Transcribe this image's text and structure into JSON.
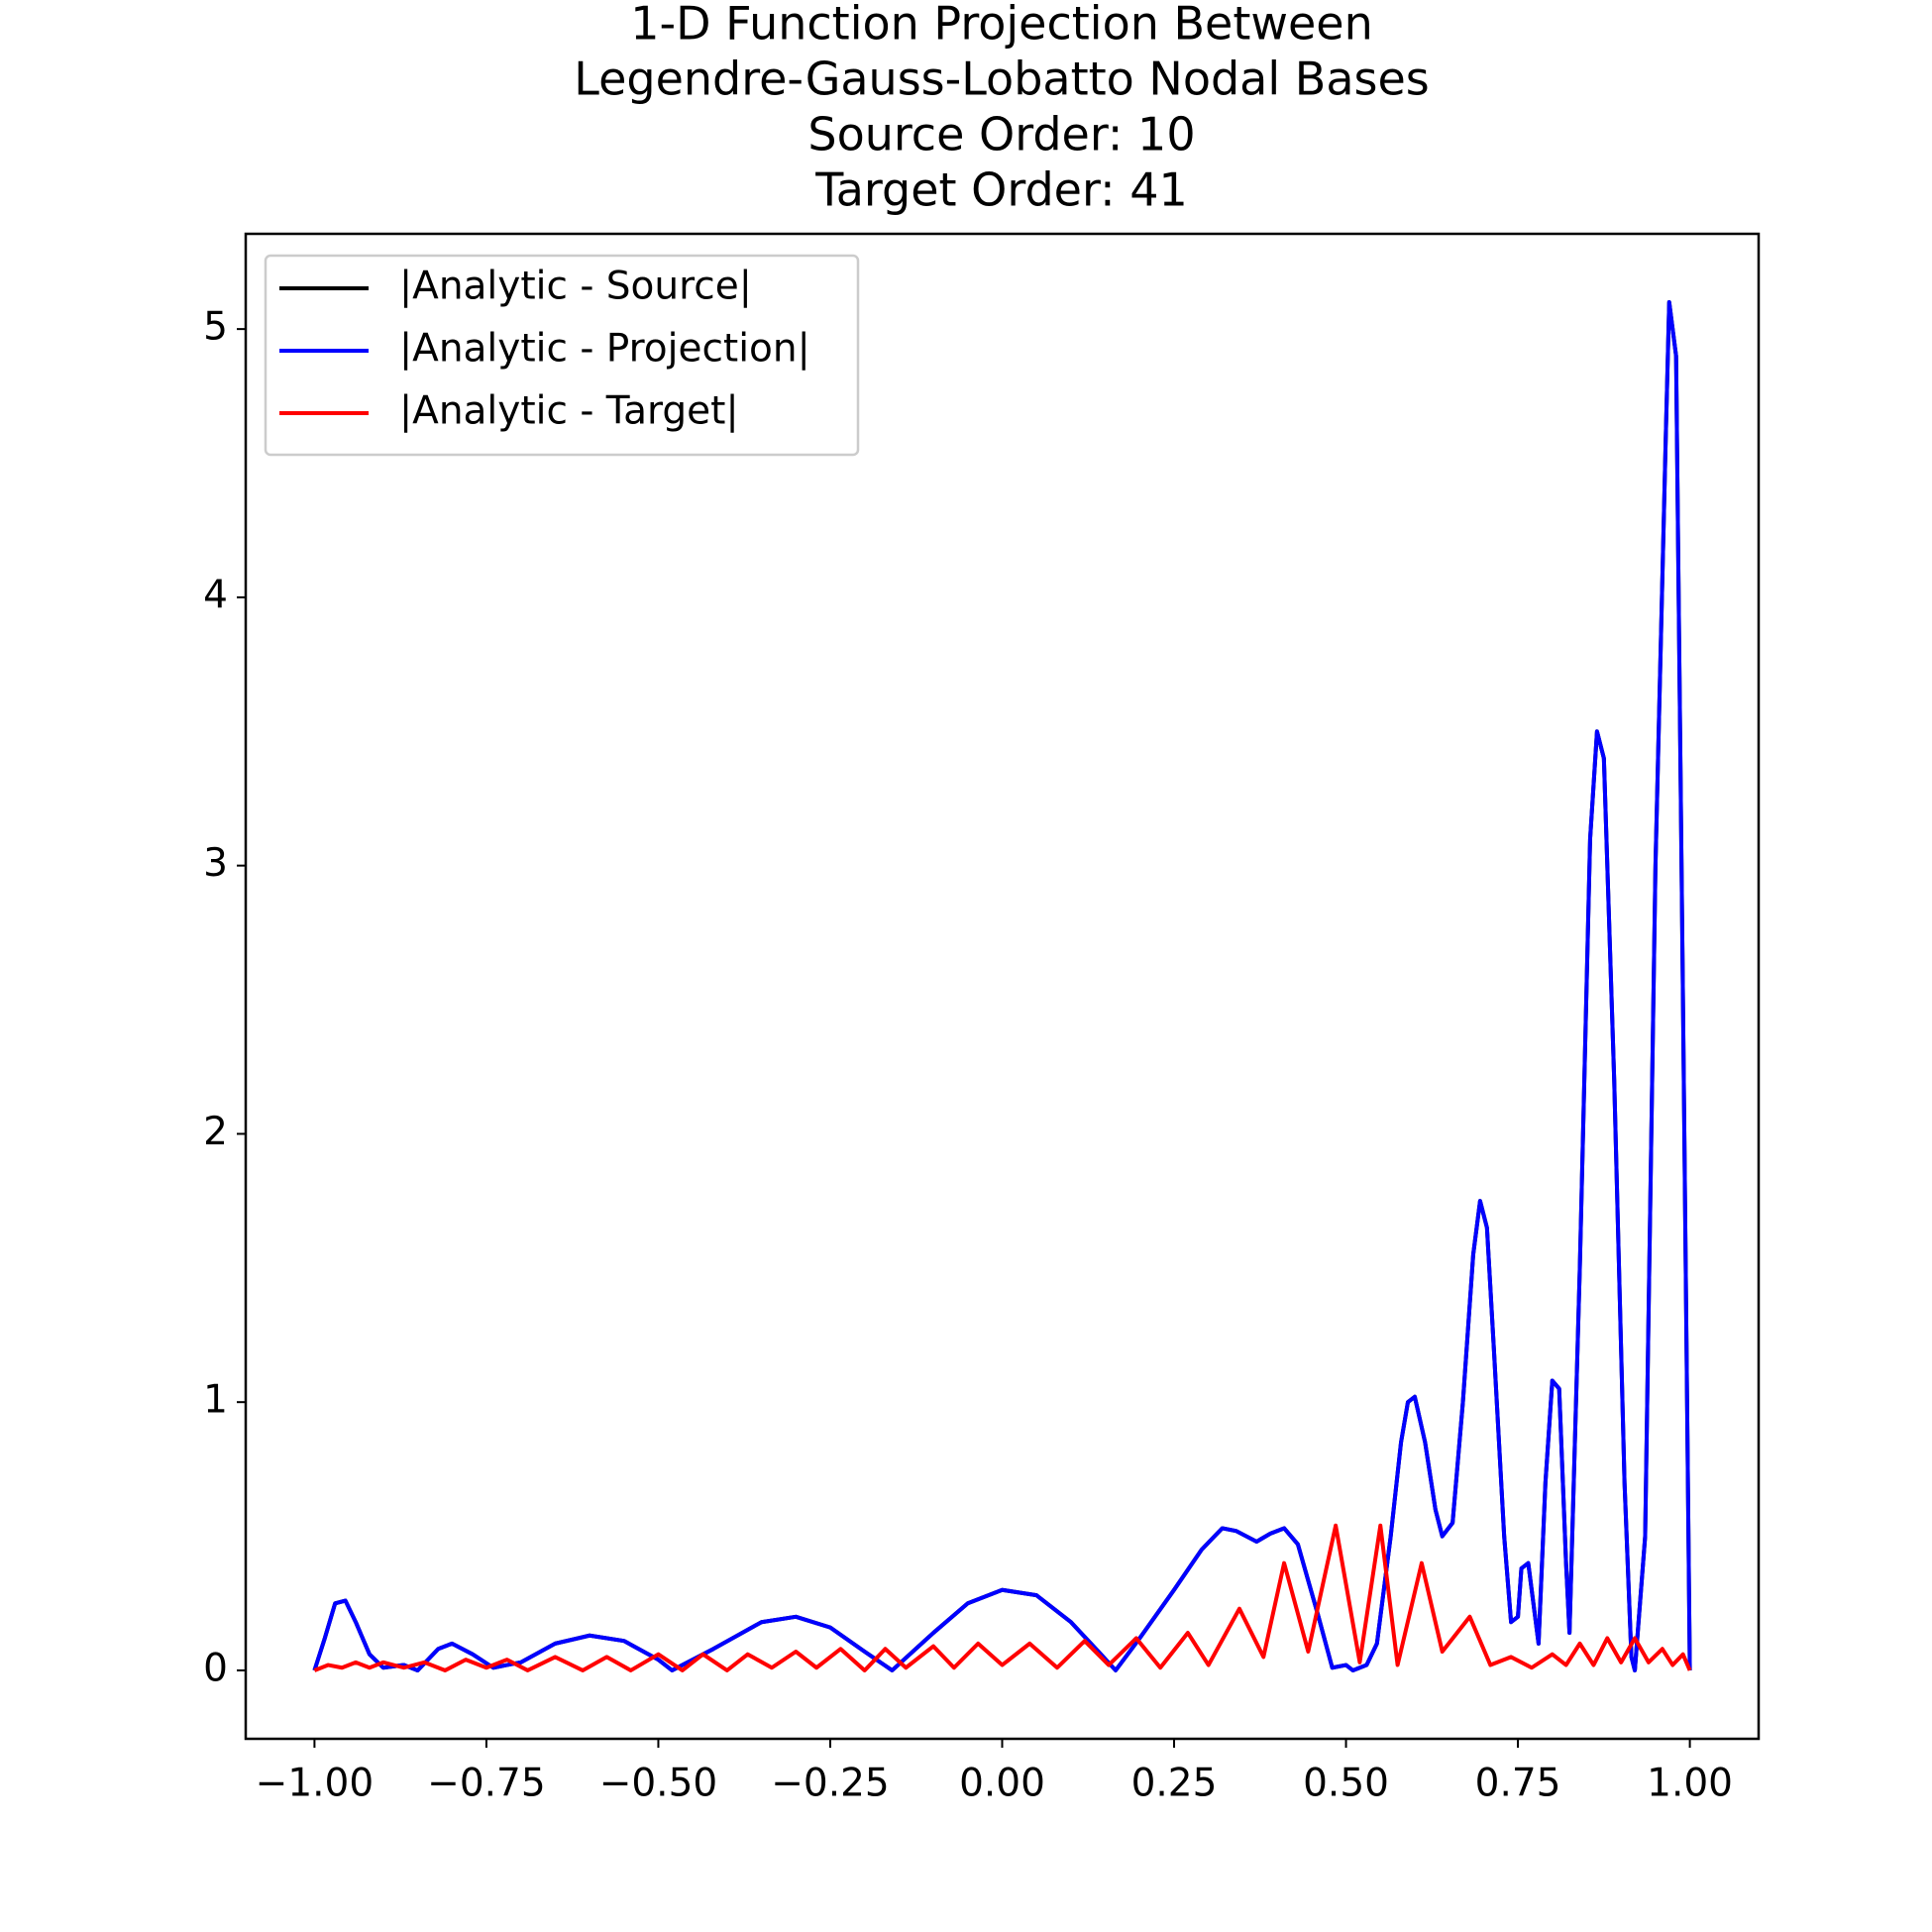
{
  "chart_data": {
    "type": "line",
    "title": [
      "1-D Function Projection Between",
      "Legendre-Gauss-Lobatto Nodal Bases",
      "Source Order: 10",
      "Target Order: 41"
    ],
    "xlim": [
      -1.1,
      1.1
    ],
    "ylim": [
      -0.255,
      5.355
    ],
    "xticks": [
      {
        "value": -1,
        "label": "−1.00"
      },
      {
        "value": -0.75,
        "label": "−0.75"
      },
      {
        "value": -0.5,
        "label": "−0.50"
      },
      {
        "value": -0.25,
        "label": "−0.25"
      },
      {
        "value": 0,
        "label": "0.00"
      },
      0.25,
      {
        "value": 0.5,
        "label": "0.50"
      },
      0.75,
      {
        "value": 1,
        "label": "1.00"
      }
    ],
    "yticks": [
      0,
      1,
      2,
      3,
      4,
      5
    ],
    "grid": false,
    "legend": "upper left",
    "series": [
      {
        "name": "|Analytic - Source|",
        "color": "#000000",
        "x": [
          -1,
          -0.985,
          -0.97,
          -0.955,
          -0.94,
          -0.92,
          -0.9,
          -0.87,
          -0.85,
          -0.82,
          -0.8,
          -0.77,
          -0.74,
          -0.7,
          -0.65,
          -0.6,
          -0.55,
          -0.5,
          -0.48,
          -0.42,
          -0.35,
          -0.3,
          -0.25,
          -0.2,
          -0.16,
          -0.1,
          -0.05,
          0,
          0.05,
          0.1,
          0.14,
          0.165,
          0.2,
          0.25,
          0.29,
          0.32,
          0.34,
          0.37,
          0.39,
          0.41,
          0.43,
          0.46,
          0.48,
          0.5,
          0.51,
          0.53,
          0.545,
          0.565,
          0.58,
          0.59,
          0.6,
          0.615,
          0.63,
          0.64,
          0.655,
          0.67,
          0.685,
          0.695,
          0.705,
          0.715,
          0.73,
          0.74,
          0.75,
          0.755,
          0.765,
          0.78,
          0.79,
          0.8,
          0.81,
          0.82,
          0.825,
          0.84,
          0.855,
          0.865,
          0.875,
          0.89,
          0.905,
          0.915,
          0.92,
          0.935,
          0.95,
          0.965,
          0.97,
          0.98,
          0.99,
          1
        ],
        "values": [
          0,
          0.12,
          0.25,
          0.26,
          0.18,
          0.06,
          0.01,
          0.02,
          0,
          0.08,
          0.1,
          0.06,
          0.01,
          0.03,
          0.1,
          0.13,
          0.11,
          0.04,
          0,
          0.08,
          0.18,
          0.2,
          0.16,
          0.07,
          0,
          0.14,
          0.25,
          0.3,
          0.28,
          0.18,
          0.07,
          0,
          0.12,
          0.3,
          0.45,
          0.53,
          0.52,
          0.48,
          0.51,
          0.53,
          0.47,
          0.2,
          0.01,
          0.02,
          0,
          0.02,
          0.1,
          0.5,
          0.85,
          1,
          1.02,
          0.85,
          0.6,
          0.5,
          0.55,
          1,
          1.55,
          1.75,
          1.65,
          1.2,
          0.5,
          0.18,
          0.2,
          0.38,
          0.4,
          0.1,
          0.7,
          1.08,
          1.05,
          0.4,
          0.14,
          1.5,
          3.1,
          3.5,
          3.4,
          2.2,
          0.7,
          0.05,
          0,
          0.5,
          3,
          4.6,
          5.1,
          4.9,
          2.5,
          0
        ]
      },
      {
        "name": "|Analytic - Projection|",
        "color": "#0000ff",
        "x": [
          -1,
          -0.985,
          -0.97,
          -0.955,
          -0.94,
          -0.92,
          -0.9,
          -0.87,
          -0.85,
          -0.82,
          -0.8,
          -0.77,
          -0.74,
          -0.7,
          -0.65,
          -0.6,
          -0.55,
          -0.5,
          -0.48,
          -0.42,
          -0.35,
          -0.3,
          -0.25,
          -0.2,
          -0.16,
          -0.1,
          -0.05,
          0,
          0.05,
          0.1,
          0.14,
          0.165,
          0.2,
          0.25,
          0.29,
          0.32,
          0.34,
          0.37,
          0.39,
          0.41,
          0.43,
          0.46,
          0.48,
          0.5,
          0.51,
          0.53,
          0.545,
          0.565,
          0.58,
          0.59,
          0.6,
          0.615,
          0.63,
          0.64,
          0.655,
          0.67,
          0.685,
          0.695,
          0.705,
          0.715,
          0.73,
          0.74,
          0.75,
          0.755,
          0.765,
          0.78,
          0.79,
          0.8,
          0.81,
          0.82,
          0.825,
          0.84,
          0.855,
          0.865,
          0.875,
          0.89,
          0.905,
          0.915,
          0.92,
          0.935,
          0.95,
          0.965,
          0.97,
          0.98,
          0.99,
          1
        ],
        "values": [
          0,
          0.12,
          0.25,
          0.26,
          0.18,
          0.06,
          0.01,
          0.02,
          0,
          0.08,
          0.1,
          0.06,
          0.01,
          0.03,
          0.1,
          0.13,
          0.11,
          0.04,
          0,
          0.08,
          0.18,
          0.2,
          0.16,
          0.07,
          0,
          0.14,
          0.25,
          0.3,
          0.28,
          0.18,
          0.07,
          0,
          0.12,
          0.3,
          0.45,
          0.53,
          0.52,
          0.48,
          0.51,
          0.53,
          0.47,
          0.2,
          0.01,
          0.02,
          0,
          0.02,
          0.1,
          0.5,
          0.85,
          1,
          1.02,
          0.85,
          0.6,
          0.5,
          0.55,
          1,
          1.55,
          1.75,
          1.65,
          1.2,
          0.5,
          0.18,
          0.2,
          0.38,
          0.4,
          0.1,
          0.7,
          1.08,
          1.05,
          0.4,
          0.14,
          1.5,
          3.1,
          3.5,
          3.4,
          2.2,
          0.7,
          0.05,
          0,
          0.5,
          3,
          4.6,
          5.1,
          4.9,
          2.5,
          0
        ]
      },
      {
        "name": "|Analytic - Target|",
        "color": "#ff0000",
        "x": [
          -1,
          -0.98,
          -0.96,
          -0.94,
          -0.92,
          -0.9,
          -0.87,
          -0.84,
          -0.81,
          -0.78,
          -0.75,
          -0.72,
          -0.69,
          -0.65,
          -0.61,
          -0.575,
          -0.54,
          -0.5,
          -0.465,
          -0.435,
          -0.4,
          -0.37,
          -0.335,
          -0.3,
          -0.27,
          -0.235,
          -0.2,
          -0.17,
          -0.14,
          -0.1,
          -0.07,
          -0.035,
          0,
          0.04,
          0.08,
          0.12,
          0.155,
          0.195,
          0.23,
          0.27,
          0.3,
          0.345,
          0.38,
          0.41,
          0.445,
          0.485,
          0.52,
          0.55,
          0.575,
          0.61,
          0.64,
          0.68,
          0.71,
          0.74,
          0.77,
          0.8,
          0.82,
          0.84,
          0.86,
          0.88,
          0.9,
          0.92,
          0.94,
          0.96,
          0.975,
          0.99,
          1
        ],
        "values": [
          0,
          0.02,
          0.01,
          0.03,
          0.01,
          0.03,
          0.01,
          0.03,
          0,
          0.04,
          0.01,
          0.04,
          0,
          0.05,
          0,
          0.05,
          0,
          0.06,
          0,
          0.06,
          0,
          0.06,
          0.01,
          0.07,
          0.01,
          0.08,
          0,
          0.08,
          0.01,
          0.09,
          0.01,
          0.1,
          0.02,
          0.1,
          0.01,
          0.11,
          0.02,
          0.12,
          0.01,
          0.14,
          0.02,
          0.23,
          0.05,
          0.4,
          0.07,
          0.54,
          0.03,
          0.54,
          0.02,
          0.4,
          0.07,
          0.2,
          0.02,
          0.05,
          0.01,
          0.06,
          0.02,
          0.1,
          0.02,
          0.12,
          0.03,
          0.12,
          0.03,
          0.08,
          0.02,
          0.06,
          0
        ]
      }
    ]
  }
}
